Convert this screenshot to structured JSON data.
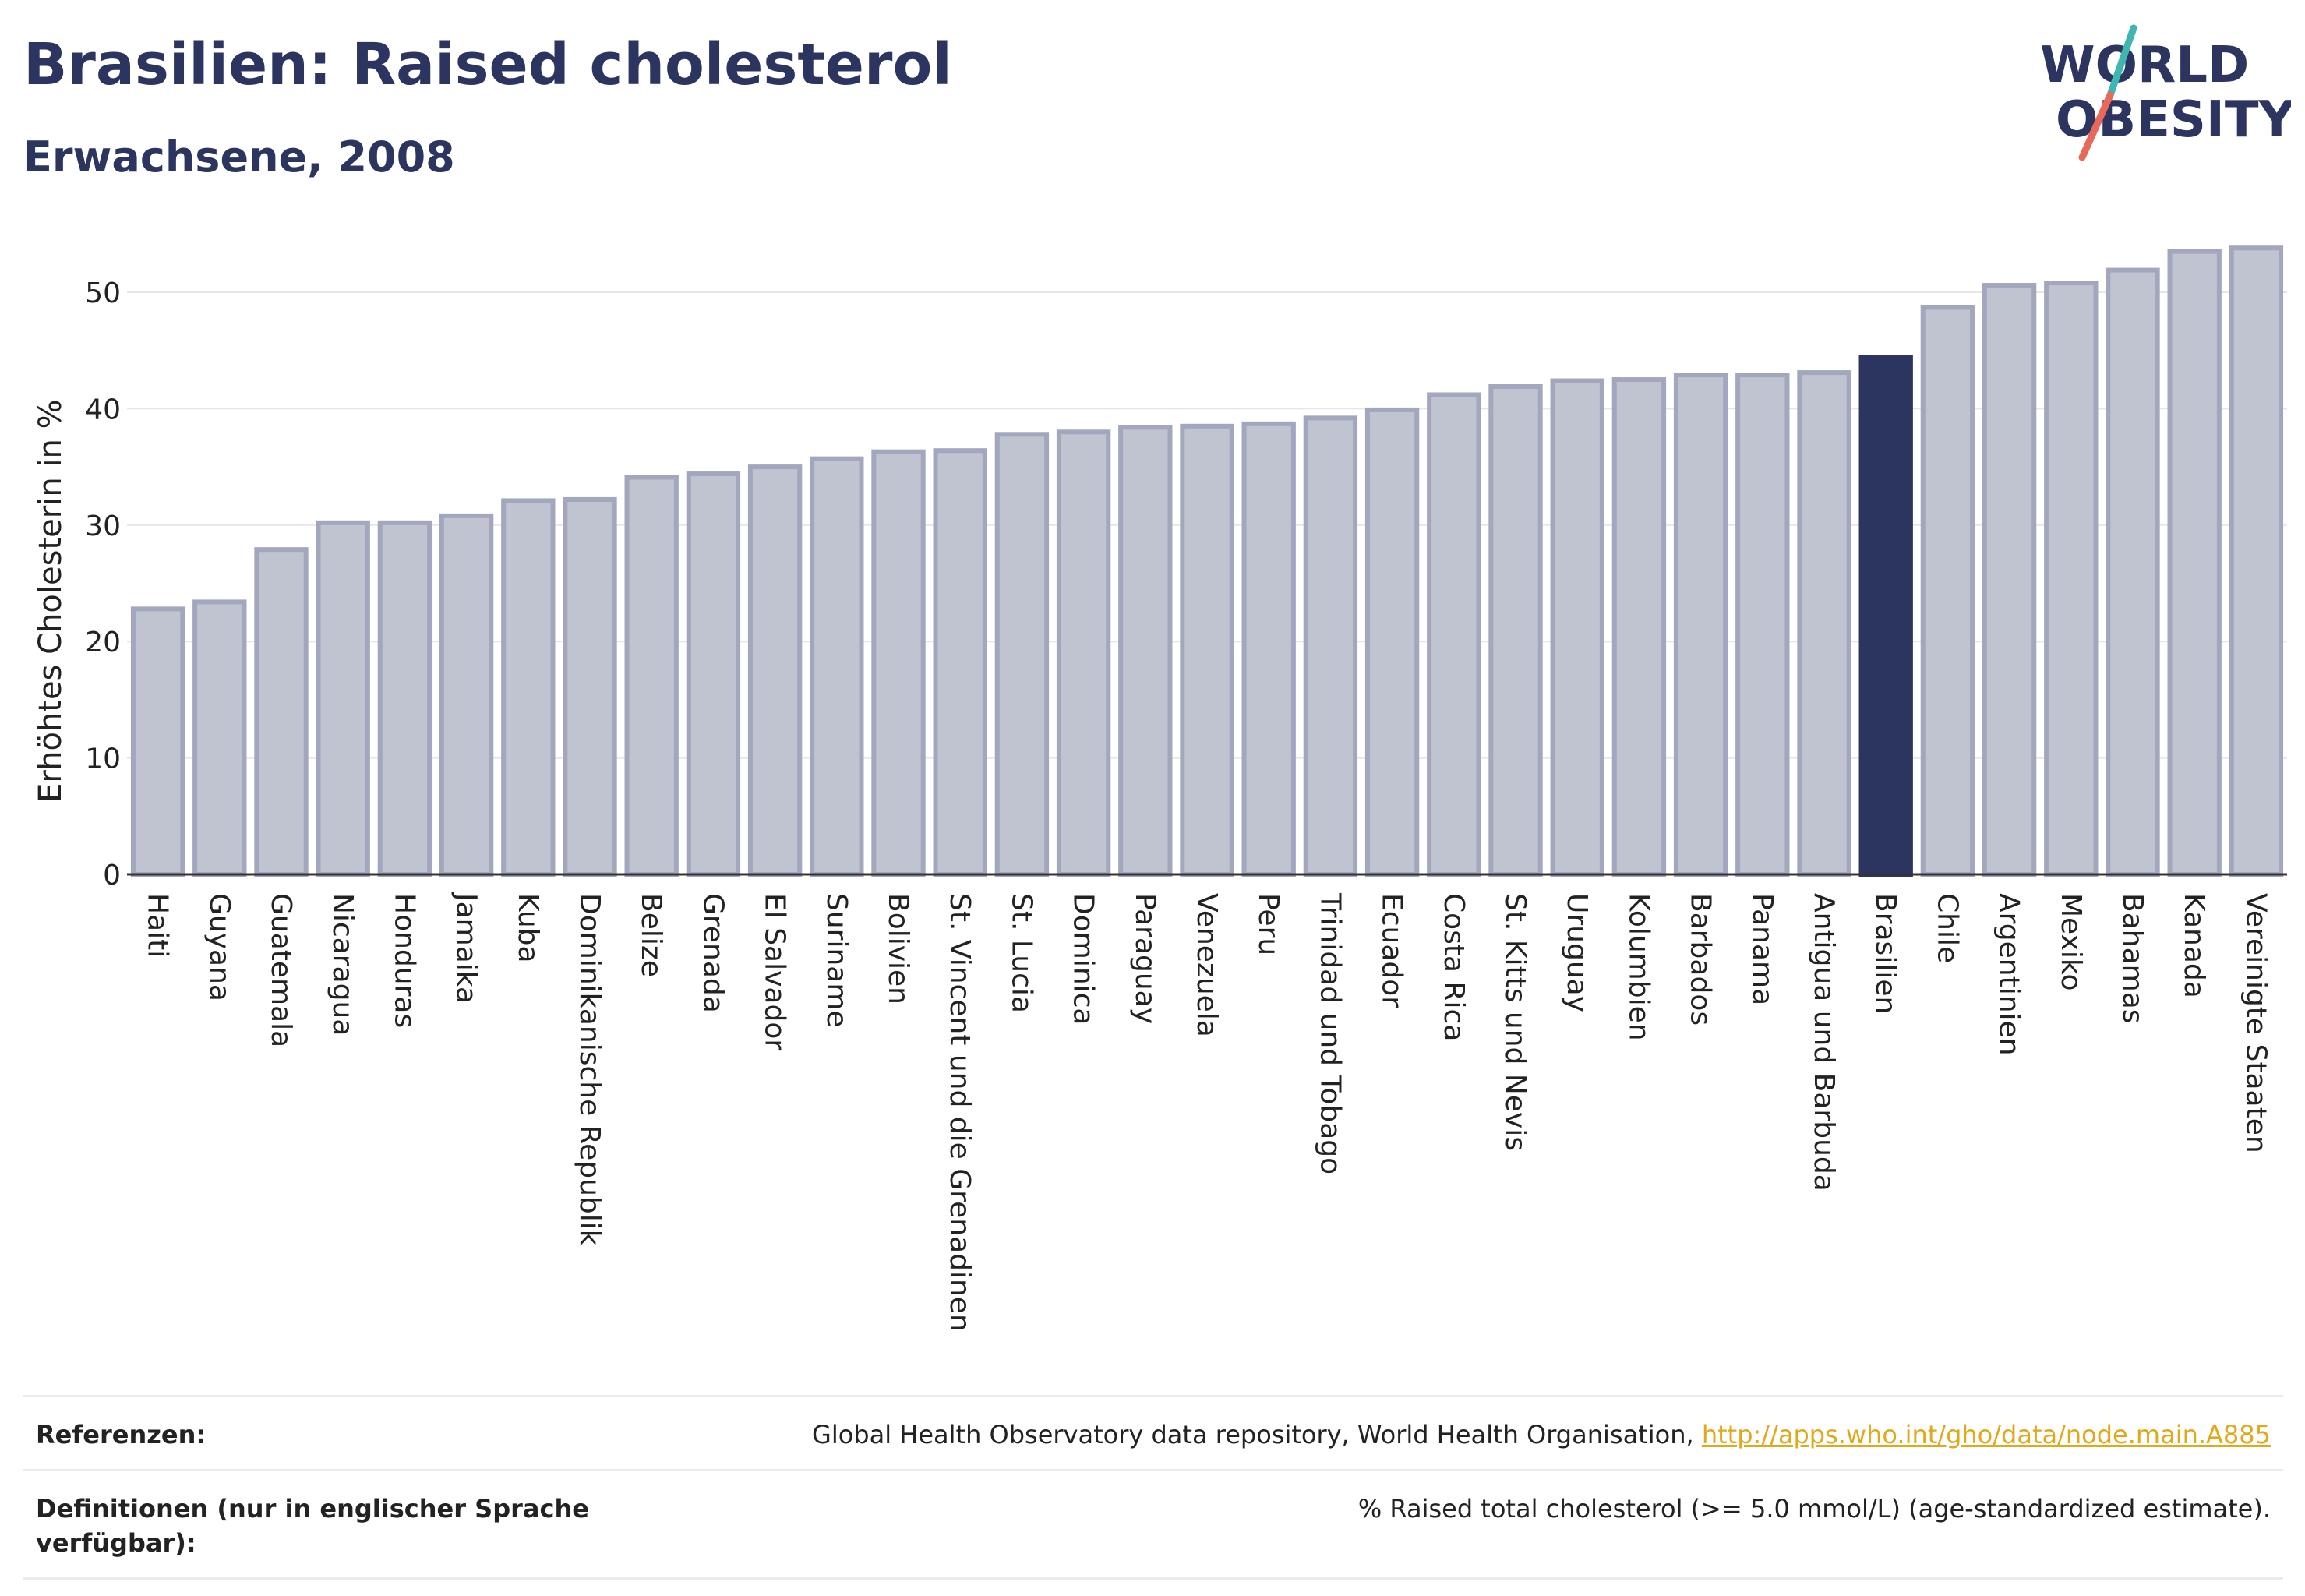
{
  "header": {
    "title": "Brasilien: Raised cholesterol",
    "subtitle": "Erwachsene, 2008"
  },
  "logo": {
    "line1": "WORLD",
    "line2": "OBESITY",
    "text_color": "#2c3560",
    "slash_teal": "#3fb6b2",
    "slash_red": "#e8685a"
  },
  "colors": {
    "bar_fill": "#c0c3d0",
    "bar_stroke": "#a2a7bd",
    "highlight": "#2c3560",
    "grid": "#e6e6e6"
  },
  "chart_data": {
    "type": "bar",
    "title": "Brasilien: Raised cholesterol",
    "subtitle": "Erwachsene, 2008",
    "ylabel": "Erhöhtes Cholesterin in %",
    "xlabel": "",
    "ylim": [
      0,
      55
    ],
    "yticks": [
      0,
      10,
      20,
      30,
      40,
      50
    ],
    "grid": true,
    "highlight": "Brasilien",
    "categories": [
      "Haiti",
      "Guyana",
      "Guatemala",
      "Nicaragua",
      "Honduras",
      "Jamaika",
      "Kuba",
      "Dominikanische Republik",
      "Belize",
      "Grenada",
      "El Salvador",
      "Suriname",
      "Bolivien",
      "St. Vincent und die Grenadinen",
      "St. Lucia",
      "Dominica",
      "Paraguay",
      "Venezuela",
      "Peru",
      "Trinidad und Tobago",
      "Ecuador",
      "Costa Rica",
      "St. Kitts und Nevis",
      "Uruguay",
      "Kolumbien",
      "Barbados",
      "Panama",
      "Antigua und Barbuda",
      "Brasilien",
      "Chile",
      "Argentinien",
      "Mexiko",
      "Bahamas",
      "Kanada",
      "Vereinigte Staaten"
    ],
    "values": [
      22.8,
      23.4,
      27.9,
      30.2,
      30.2,
      30.8,
      32.1,
      32.2,
      34.1,
      34.4,
      35.0,
      35.7,
      36.3,
      36.4,
      37.8,
      38.0,
      38.4,
      38.5,
      38.7,
      39.2,
      39.9,
      41.2,
      41.9,
      42.4,
      42.5,
      42.9,
      42.9,
      43.1,
      44.4,
      48.7,
      50.6,
      50.8,
      51.9,
      53.5,
      53.8
    ]
  },
  "footer": {
    "references_label": "Referenzen:",
    "references_text": "Global Health Observatory data repository, World Health Organisation, ",
    "references_link": "http://apps.who.int/gho/data/node.main.A885",
    "definitions_label": "Definitionen (nur in englischer Sprache verfügbar):",
    "definitions_text": "% Raised total cholesterol (>= 5.0 mmol/L) (age-standardized estimate)."
  }
}
